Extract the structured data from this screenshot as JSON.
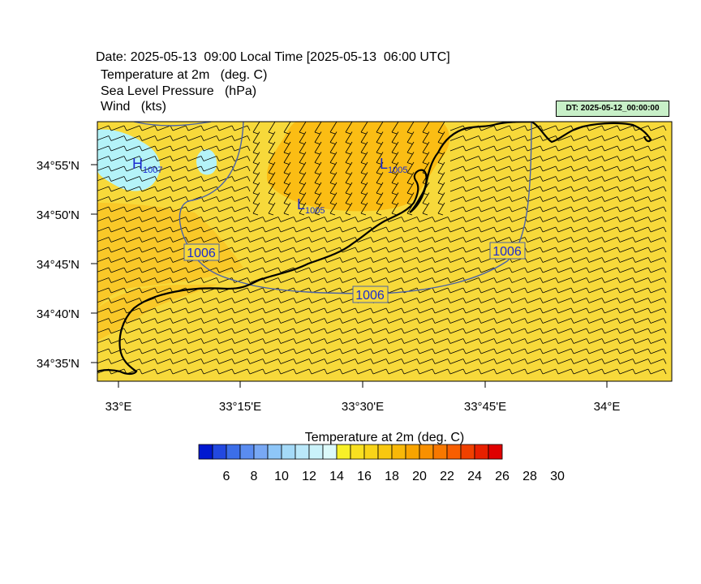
{
  "header": {
    "date_line": "Date: 2025-05-13  09:00 Local Time [2025-05-13  06:00 UTC]",
    "layers": [
      "Temperature at 2m   (deg. C)",
      "Sea Level Pressure   (hPa)",
      "Wind   (kts)"
    ],
    "dt_badge": "DT: 2025-05-12_00:00:00"
  },
  "map": {
    "lat_ticks": [
      "34°55'N",
      "34°50'N",
      "34°45'N",
      "34°40'N",
      "34°35'N"
    ],
    "lon_ticks": [
      "33°E",
      "33°15'E",
      "33°30'E",
      "33°45'E",
      "34°E"
    ],
    "pressure_labels": [
      "1006",
      "1006",
      "1006"
    ],
    "pressure_centers": [
      {
        "letter": "H",
        "value": "1007"
      },
      {
        "letter": "L",
        "value": "1005"
      },
      {
        "letter": "L",
        "value": "1005"
      }
    ],
    "colors": {
      "warm_fill": "#f7d93a",
      "orange_fill": "#fbbd14",
      "light_orange": "#f9c828",
      "cold_fill": "#b4f3f8",
      "isobar": "#4b62a8",
      "coast": "#000000",
      "label_blue": "#1a2ad0"
    }
  },
  "colorbar": {
    "title": "Temperature at 2m  (deg. C)",
    "labels": [
      "6",
      "8",
      "10",
      "12",
      "14",
      "16",
      "18",
      "20",
      "22",
      "24",
      "26",
      "28",
      "30"
    ],
    "colors": [
      "#0018d0",
      "#2248e0",
      "#3c6ee8",
      "#5a8cf0",
      "#78a8f4",
      "#8ec6f8",
      "#a4daf8",
      "#bae8fa",
      "#caf2fa",
      "#dcfafa",
      "#f8f028",
      "#f8e020",
      "#f8d418",
      "#f8c810",
      "#f8b808",
      "#f8a400",
      "#f89000",
      "#f87800",
      "#f85e00",
      "#f04000",
      "#e82000",
      "#e00000"
    ]
  }
}
